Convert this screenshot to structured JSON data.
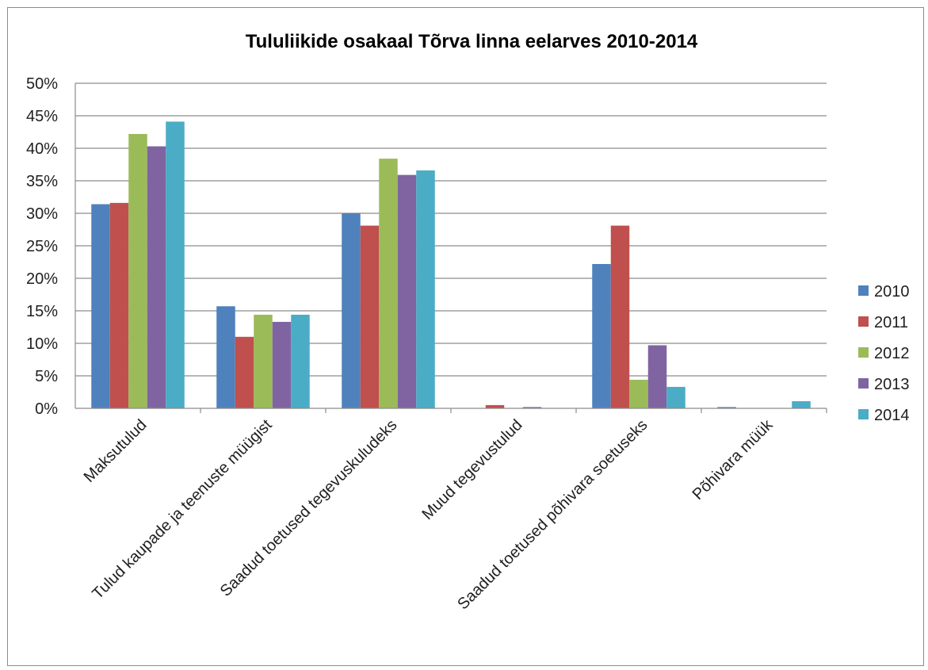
{
  "chart_data": {
    "type": "bar",
    "title": "Tululiikide osakaal Tõrva linna eelarves 2010-2014",
    "xlabel": "",
    "ylabel": "",
    "ylim": [
      0,
      50
    ],
    "y_ticks": [
      "0%",
      "5%",
      "10%",
      "15%",
      "20%",
      "25%",
      "30%",
      "35%",
      "40%",
      "45%",
      "50%"
    ],
    "grid": true,
    "legend_position": "right",
    "categories": [
      "Maksutulud",
      "Tulud kaupade ja teenuste müügist",
      "Saadud toetused tegevuskuludeks",
      "Muud tegevustulud",
      "Saadud toetused põhivara soetuseks",
      "Põhivara müük"
    ],
    "series": [
      {
        "name": "2010",
        "color": "#4f81bd",
        "values": [
          31.4,
          15.7,
          30.0,
          0.0,
          22.2,
          0.2
        ]
      },
      {
        "name": "2011",
        "color": "#c0504d",
        "values": [
          31.6,
          11.0,
          28.1,
          0.5,
          28.1,
          0.0
        ]
      },
      {
        "name": "2012",
        "color": "#9bbb59",
        "values": [
          42.2,
          14.4,
          38.4,
          0.0,
          4.4,
          0.0
        ]
      },
      {
        "name": "2013",
        "color": "#8064a2",
        "values": [
          40.3,
          13.3,
          35.9,
          0.2,
          9.7,
          0.0
        ]
      },
      {
        "name": "2014",
        "color": "#4bacc6",
        "values": [
          44.1,
          14.4,
          36.6,
          0.0,
          3.3,
          1.1
        ]
      }
    ]
  }
}
